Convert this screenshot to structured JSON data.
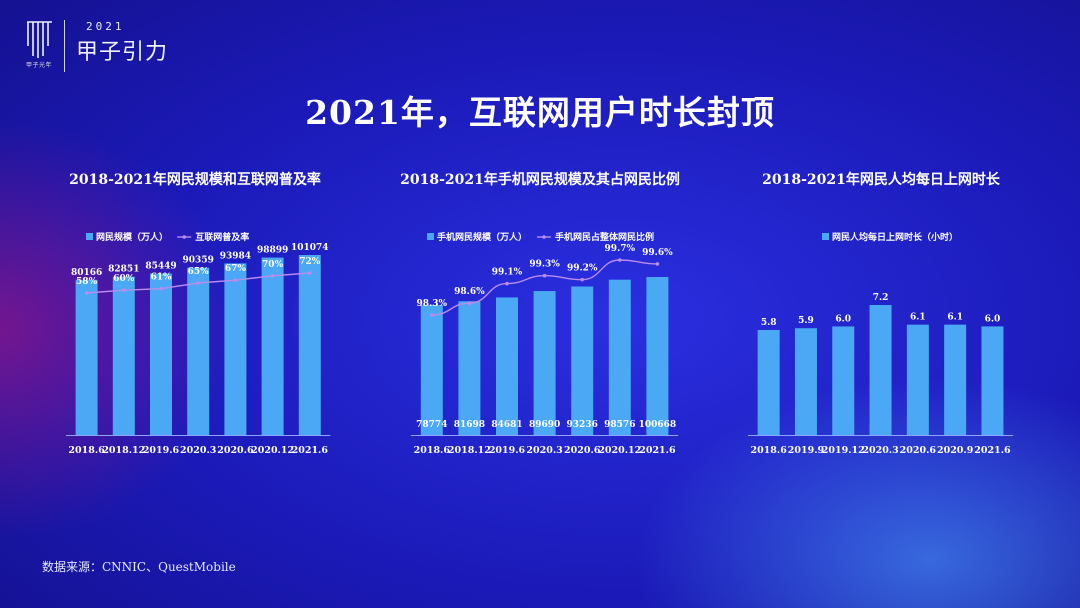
{
  "header": {
    "logo_org_text": "甲子光年",
    "logo_year": "2021",
    "logo_brand": "甲子引力",
    "title": "2021年，互联网用户时长封顶"
  },
  "footer": {
    "source": "数据来源：CNNIC、QuestMobile"
  },
  "colors": {
    "bar": "#4aa8f5",
    "line": "#b98cf0",
    "axis": "#8ea4ff",
    "text": "#ffffff"
  },
  "chart_data": [
    {
      "type": "bar+line",
      "title": "2018-2021年网民规模和互联网普及率",
      "categories": [
        "2018.6",
        "2018.12",
        "2019.6",
        "2020.3",
        "2020.6",
        "2020.12",
        "2021.6"
      ],
      "series": [
        {
          "name": "网民规模（万人）",
          "type": "bar",
          "values": [
            80166,
            82851,
            85449,
            90359,
            93984,
            98899,
            101074
          ],
          "labels": [
            "80166",
            "82851",
            "85449",
            "90359",
            "93984",
            "98899",
            "101074"
          ],
          "label_position": "top"
        },
        {
          "name": "互联网普及率",
          "type": "line",
          "values": [
            58,
            60,
            61,
            65,
            67,
            70,
            72
          ],
          "labels": [
            "58%",
            "60%",
            "61%",
            "65%",
            "67%",
            "70%",
            "72%"
          ],
          "smooth": false
        }
      ]
    },
    {
      "type": "bar+line",
      "title": "2018-2021年手机网民规模及其占网民比例",
      "categories": [
        "2018.6",
        "2018.12",
        "2019.6",
        "2020.3",
        "2020.6",
        "2020.12",
        "2021.6"
      ],
      "series": [
        {
          "name": "手机网民规模（万人）",
          "type": "bar",
          "values": [
            78774,
            81698,
            84681,
            89690,
            93236,
            98576,
            100668
          ],
          "labels": [
            "78774",
            "81698",
            "84681",
            "89690",
            "93236",
            "98576",
            "100668"
          ],
          "label_position": "bottom"
        },
        {
          "name": "手机网民占整体网民比例",
          "type": "line",
          "values": [
            98.3,
            98.6,
            99.1,
            99.3,
            99.2,
            99.7,
            99.6
          ],
          "labels": [
            "98.3%",
            "98.6%",
            "99.1%",
            "99.3%",
            "99.2%",
            "99.7%",
            "99.6%"
          ],
          "smooth": true
        }
      ]
    },
    {
      "type": "bar",
      "title": "2018-2021年网民人均每日上网时长",
      "categories": [
        "2018.6",
        "2019.9",
        "2019.12",
        "2020.3",
        "2020.6",
        "2020.9",
        "2021.6"
      ],
      "series": [
        {
          "name": "网民人均每日上网时长（小时）",
          "type": "bar",
          "values": [
            5.8,
            5.9,
            6.0,
            7.2,
            6.1,
            6.1,
            6.0
          ],
          "labels": [
            "5.8",
            "5.9",
            "6.0",
            "7.2",
            "6.1",
            "6.1",
            "6.0"
          ],
          "label_position": "top"
        }
      ]
    }
  ]
}
